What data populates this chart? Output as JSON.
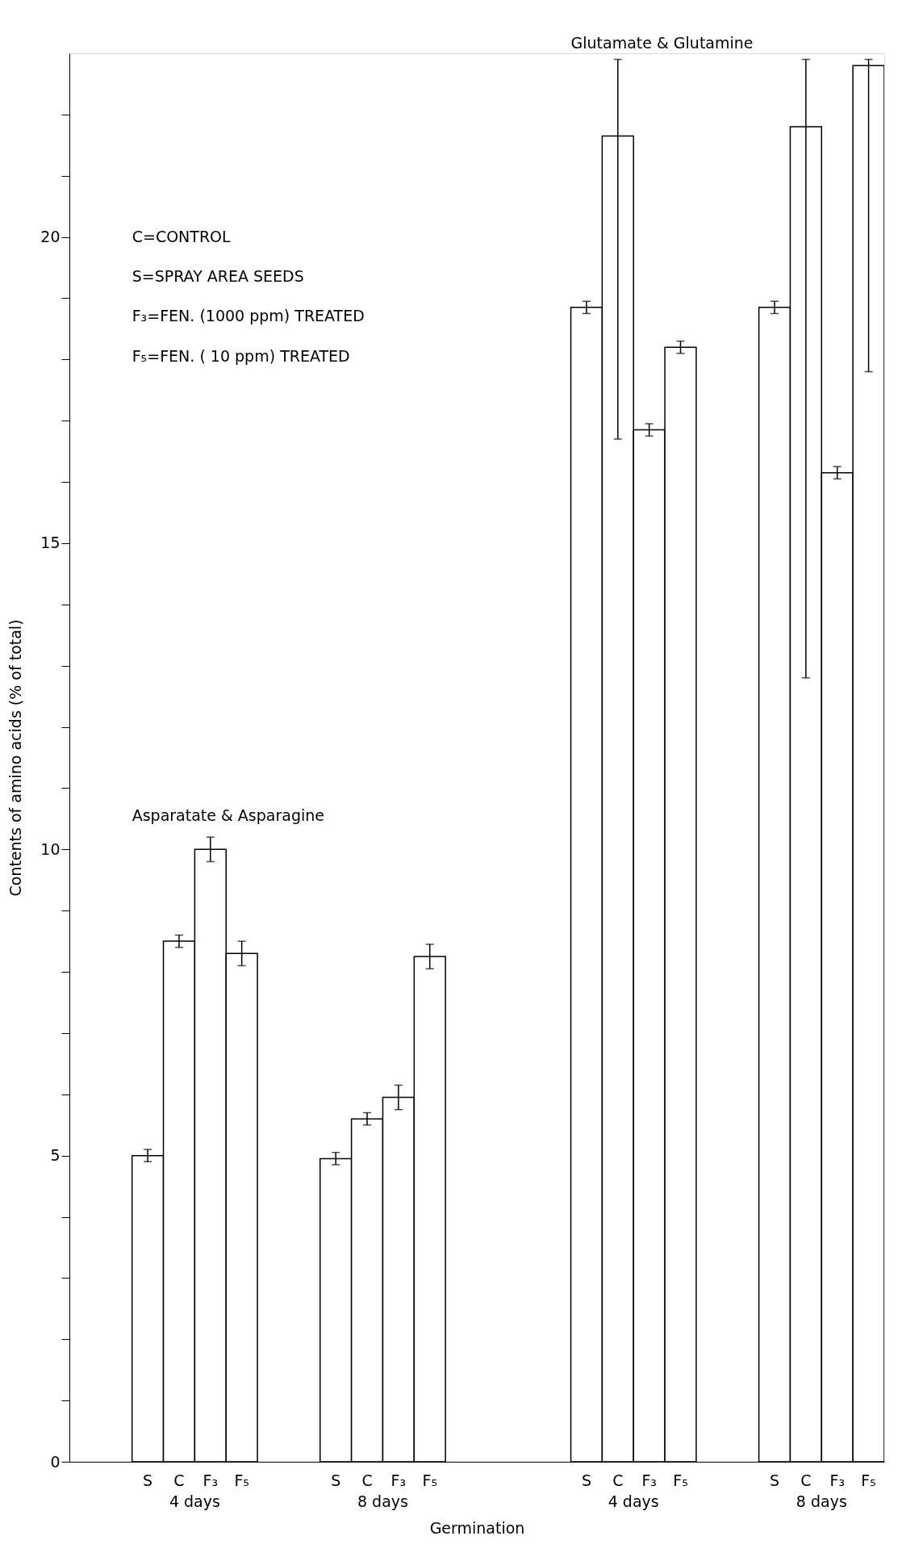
{
  "chart_data": {
    "type": "bar",
    "categories": [
      null,
      null,
      "S",
      "C",
      "F₃",
      "F₅",
      null,
      null,
      "S",
      "C",
      "F₃",
      "F₅",
      null,
      null,
      null,
      null,
      "S",
      "C",
      "F₃",
      "F₅",
      null,
      null,
      "S",
      "C",
      "F₃",
      "F₅"
    ],
    "values": [
      null,
      null,
      5.0,
      8.5,
      10.0,
      8.3,
      null,
      null,
      4.95,
      5.6,
      5.95,
      8.25,
      null,
      null,
      null,
      null,
      18.85,
      21.65,
      16.85,
      18.2,
      null,
      null,
      18.85,
      21.8,
      16.15,
      22.8
    ],
    "errors": [
      null,
      null,
      0.1,
      0.1,
      0.2,
      0.2,
      null,
      null,
      0.1,
      0.1,
      0.2,
      0.2,
      null,
      null,
      null,
      null,
      0.1,
      [
        16.7,
        22.9
      ],
      0.1,
      0.1,
      null,
      null,
      0.1,
      [
        12.8,
        22.9
      ],
      0.1,
      [
        17.8,
        22.9
      ]
    ],
    "color": "#ffffff",
    "ylabel": "Contents of amino acids (% of total)",
    "xlabel": "Germination",
    "ylim": [
      0,
      23
    ],
    "yticks": [
      0,
      {
        "value": 1,
        "label": null
      },
      {
        "value": 2,
        "label": null
      },
      {
        "value": 3,
        "label": null
      },
      {
        "value": 4,
        "label": null
      },
      5,
      {
        "value": 6,
        "label": null
      },
      {
        "value": 7,
        "label": null
      },
      {
        "value": 8,
        "label": null
      },
      {
        "value": 9,
        "label": null
      },
      10,
      {
        "value": 11,
        "label": null
      },
      {
        "value": 12,
        "label": null
      },
      {
        "value": 13,
        "label": null
      },
      {
        "value": 14,
        "label": null
      },
      15,
      {
        "value": 16,
        "label": null
      },
      {
        "value": 17,
        "label": null
      },
      {
        "value": 18,
        "label": null
      },
      {
        "value": 19,
        "label": null
      },
      20,
      {
        "value": 21,
        "label": null
      },
      {
        "value": 22,
        "label": null
      }
    ],
    "grid": false,
    "annotations": [
      "C=CONTROL",
      "S=SPRAY AREA SEEDS",
      "F₃=FEN. (1000 ppm) TREATED",
      "F₅=FEN. ( 10 ppm) TREATED",
      "Asparatate & Asparagine",
      "Glutamate & Glutamine",
      "4 days",
      "8 days",
      "4 days",
      "8 days"
    ]
  }
}
